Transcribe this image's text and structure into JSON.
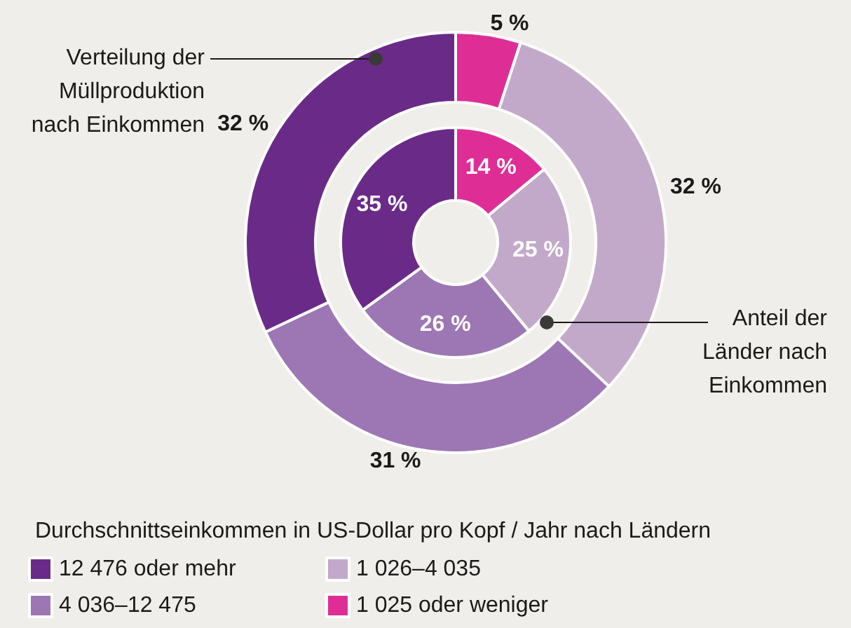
{
  "chart_data": {
    "type": "donut",
    "categories": [
      "1 025 oder weniger",
      "1 026–4 035",
      "4 036–12 475",
      "12 476 oder mehr"
    ],
    "colors": [
      "#de2e96",
      "#c2a9c9",
      "#9c77b3",
      "#6a2b88"
    ],
    "series": [
      {
        "name": "Anteil der Länder nach Einkommen",
        "values": [
          14,
          25,
          26,
          35
        ],
        "value_labels": [
          "14 %",
          "25 %",
          "26 %",
          "35 %"
        ]
      },
      {
        "name": "Verteilung der Müllproduktion nach Einkommen",
        "values": [
          5,
          32,
          31,
          32
        ],
        "value_labels": [
          "5 %",
          "32 %",
          "31 %",
          "32 %"
        ]
      }
    ],
    "legend_title": "Durchschnittseinkommen in US-Dollar pro Kopf / Jahr nach Ländern",
    "legend": "bottom"
  }
}
